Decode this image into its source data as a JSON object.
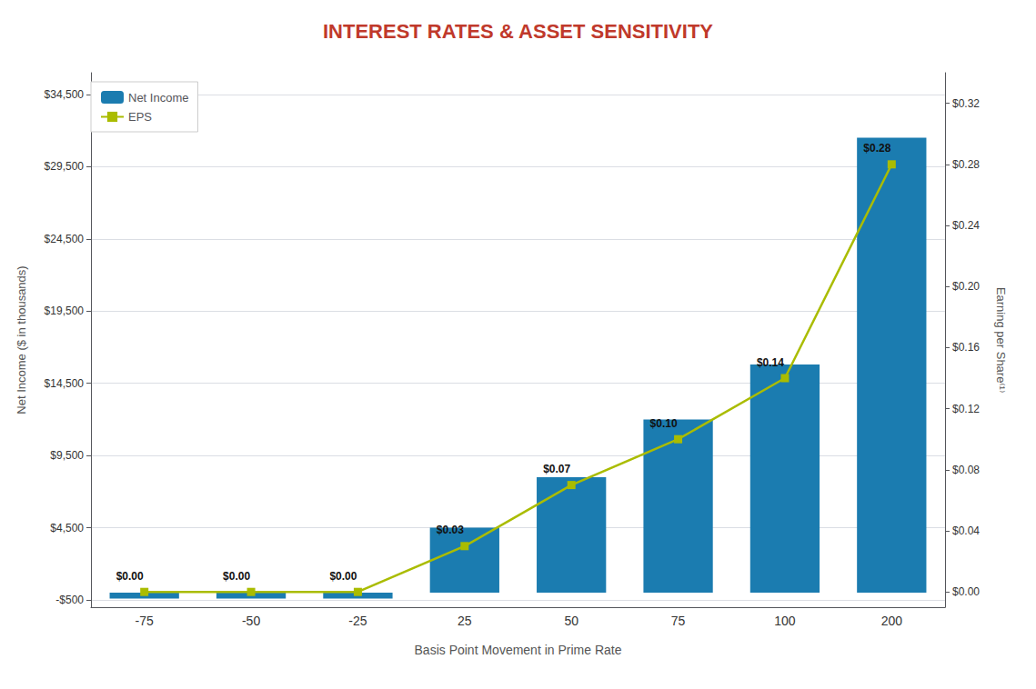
{
  "chart_data": {
    "type": "bar",
    "title": "INTEREST RATES & ASSET SENSITIVITY",
    "title_color": "#C0392B",
    "xlabel": "Basis Point Movement in Prime Rate",
    "ylabel": "Net Income ($ in thousands)",
    "y2label": "Earning per Share⁽¹⁾",
    "categories": [
      "-75",
      "-50",
      "-25",
      "25",
      "50",
      "75",
      "100",
      "200"
    ],
    "series": [
      {
        "name": "Net Income",
        "type": "bar",
        "color": "#1B7CB0",
        "values": [
          -400,
          -400,
          -400,
          4500,
          8000,
          12000,
          15800,
          31500
        ]
      },
      {
        "name": "EPS",
        "type": "line",
        "axis": "y2",
        "color": "#AABC00",
        "marker": "square",
        "data_labels": true,
        "values": [
          0.0,
          0.0,
          0.0,
          0.03,
          0.07,
          0.1,
          0.14,
          0.28
        ],
        "value_labels": [
          "$0.00",
          "$0.00",
          "$0.00",
          "$0.03",
          "$0.07",
          "$0.10",
          "$0.14",
          "$0.28"
        ]
      }
    ],
    "ylim": [
      -1000,
      36000
    ],
    "yticks": [
      {
        "value": -500,
        "label": "-$500"
      },
      {
        "value": 4500,
        "label": "$4,500"
      },
      {
        "value": 9500,
        "label": "$9,500"
      },
      {
        "value": 14500,
        "label": "$14,500"
      },
      {
        "value": 19500,
        "label": "$19,500"
      },
      {
        "value": 24500,
        "label": "$24,500"
      },
      {
        "value": 29500,
        "label": "$29,500"
      },
      {
        "value": 34500,
        "label": "$34,500"
      }
    ],
    "y2lim": [
      -0.01,
      0.34
    ],
    "y2ticks": [
      {
        "value": 0.0,
        "label": "$0.00"
      },
      {
        "value": 0.04,
        "label": "$0.04"
      },
      {
        "value": 0.08,
        "label": "$0.08"
      },
      {
        "value": 0.12,
        "label": "$0.12"
      },
      {
        "value": 0.16,
        "label": "$0.16"
      },
      {
        "value": 0.2,
        "label": "$0.20"
      },
      {
        "value": 0.24,
        "label": "$0.24"
      },
      {
        "value": 0.28,
        "label": "$0.28"
      },
      {
        "value": 0.32,
        "label": "$0.32"
      }
    ],
    "grid": true,
    "legend": "upper left"
  }
}
